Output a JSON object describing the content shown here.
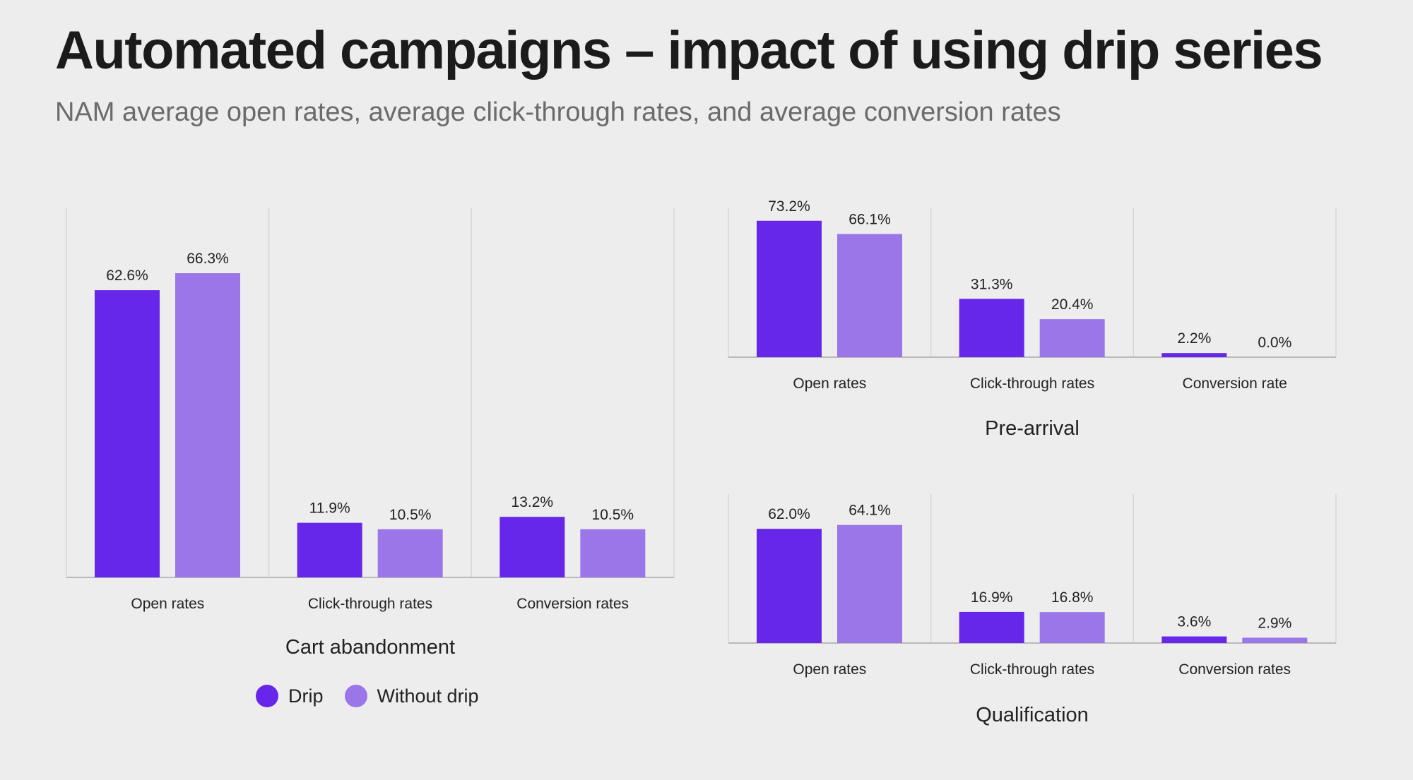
{
  "title": "Automated campaigns – impact of using drip series",
  "subtitle": "NAM average open rates, average click-through rates, and average conversion rates",
  "colors": {
    "drip": "#6627ea",
    "without_drip": "#9b76e8",
    "grid": "#d6d6d6",
    "axis": "#b9b9b9",
    "text": "#222222"
  },
  "legend": {
    "drip": "Drip",
    "without_drip": "Without drip"
  },
  "chart_data": [
    {
      "type": "bar",
      "title": "Cart abandonment",
      "categories": [
        "Open rates",
        "Click-through rates",
        "Conversion rates"
      ],
      "series": [
        {
          "name": "Drip",
          "values": [
            62.6,
            11.9,
            13.2
          ],
          "labels": [
            "62.6%",
            "11.9%",
            "13.2%"
          ]
        },
        {
          "name": "Without drip",
          "values": [
            66.3,
            10.5,
            10.5
          ],
          "labels": [
            "66.3%",
            "10.5%",
            "10.5%"
          ]
        }
      ],
      "ylim": [
        0,
        80
      ],
      "grid": "vertical separators",
      "legend": "bottom"
    },
    {
      "type": "bar",
      "title": "Pre-arrival",
      "categories": [
        "Open rates",
        "Click-through rates",
        "Conversion rate"
      ],
      "series": [
        {
          "name": "Drip",
          "values": [
            73.2,
            31.3,
            2.2
          ],
          "labels": [
            "73.2%",
            "31.3%",
            "2.2%"
          ]
        },
        {
          "name": "Without drip",
          "values": [
            66.1,
            20.4,
            0.0
          ],
          "labels": [
            "66.1%",
            "20.4%",
            "0.0%"
          ]
        }
      ],
      "ylim": [
        0,
        80
      ],
      "grid": "vertical separators"
    },
    {
      "type": "bar",
      "title": "Qualification",
      "categories": [
        "Open rates",
        "Click-through rates",
        "Conversion rates"
      ],
      "series": [
        {
          "name": "Drip",
          "values": [
            62.0,
            16.9,
            3.6
          ],
          "labels": [
            "62.0%",
            "16.9%",
            "3.6%"
          ]
        },
        {
          "name": "Without drip",
          "values": [
            64.1,
            16.8,
            2.9
          ],
          "labels": [
            "64.1%",
            "16.8%",
            "2.9%"
          ]
        }
      ],
      "ylim": [
        0,
        80
      ],
      "grid": "vertical separators"
    }
  ]
}
